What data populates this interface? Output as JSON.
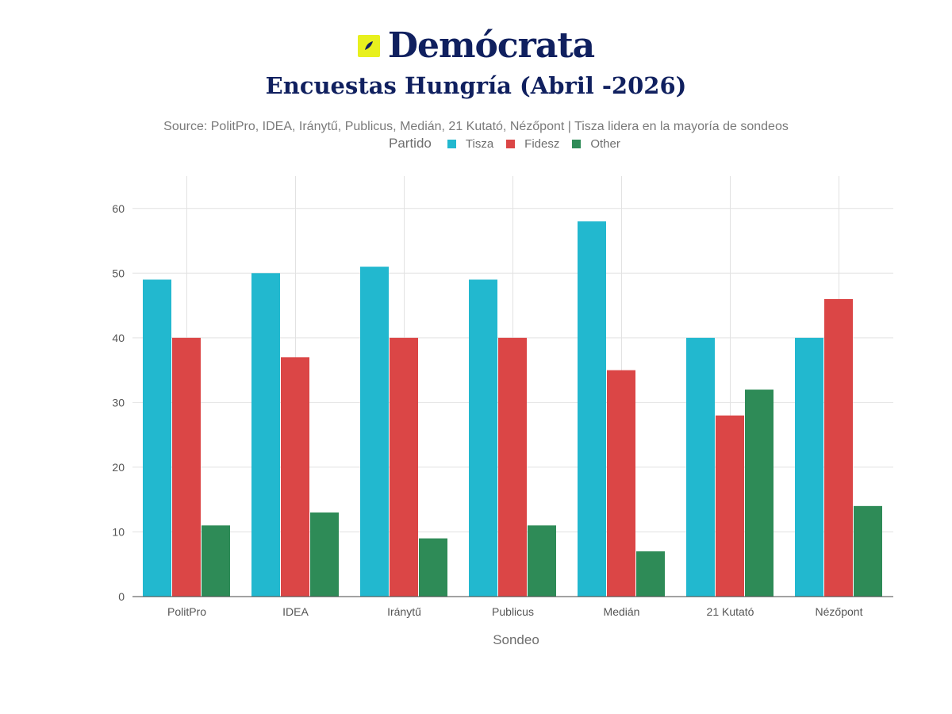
{
  "header": {
    "brand_name": "Demócrata",
    "brand_mark_icon": "logo-mark-icon",
    "brand_color": "#10205f",
    "brand_accent": "#e8f01e"
  },
  "chart_data": {
    "type": "bar",
    "title": "Encuestas Hungría (Abril -2026)",
    "subtitle": "Source: PolitPro, IDEA, Iránytű, Publicus, Medián, 21 Kutató, Nézőpont | Tisza lidera en la mayoría de sondeos",
    "xlabel": "Sondeo",
    "ylabel": "",
    "ylim": [
      0,
      65
    ],
    "yticks": [
      0,
      10,
      20,
      30,
      40,
      50,
      60
    ],
    "grid": true,
    "legend_title": "Partido",
    "legend_position": "top",
    "categories": [
      "PolitPro",
      "IDEA",
      "Iránytű",
      "Publicus",
      "Medián",
      "21 Kutató",
      "Nézőpont"
    ],
    "series": [
      {
        "name": "Tisza",
        "color": "#22b8cf",
        "values": [
          49,
          50,
          51,
          49,
          58,
          40,
          40
        ]
      },
      {
        "name": "Fidesz",
        "color": "#db4646",
        "values": [
          40,
          37,
          40,
          40,
          35,
          28,
          46
        ]
      },
      {
        "name": "Other",
        "color": "#2e8b57",
        "values": [
          11,
          13,
          9,
          11,
          7,
          32,
          14
        ]
      }
    ]
  }
}
